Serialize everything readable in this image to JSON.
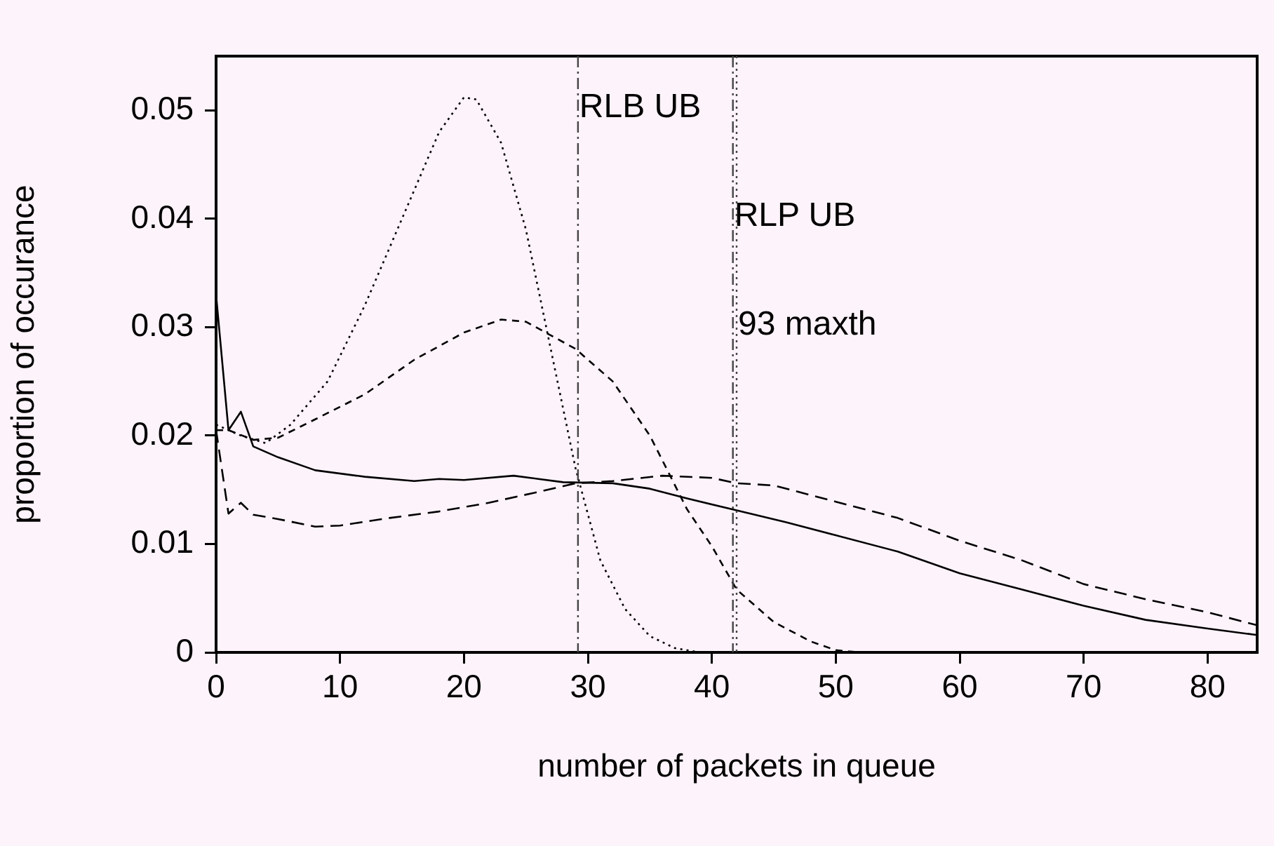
{
  "chart_data": {
    "type": "line",
    "xlabel": "number of packets in queue",
    "ylabel": "proportion of occurance",
    "xlim": [
      0,
      84
    ],
    "xticks": [
      0,
      10,
      20,
      30,
      40,
      50,
      60,
      70,
      80
    ],
    "ylim": [
      0,
      0.055
    ],
    "yticks": [
      0,
      0.01,
      0.02,
      0.03,
      0.04,
      0.05
    ],
    "grid": false,
    "legend": false,
    "marker": "none",
    "series": [
      {
        "color": "#000000",
        "line_style": "solid",
        "x": [
          0,
          1,
          2,
          3,
          5,
          8,
          12,
          16,
          18,
          20,
          24,
          26,
          28,
          32,
          35,
          38,
          42,
          46,
          50,
          55,
          60,
          65,
          70,
          75,
          80,
          84
        ],
        "values": [
          0.033,
          0.0205,
          0.0222,
          0.019,
          0.018,
          0.0168,
          0.0162,
          0.0158,
          0.016,
          0.0159,
          0.0163,
          0.016,
          0.0157,
          0.0156,
          0.0151,
          0.0142,
          0.0131,
          0.012,
          0.0108,
          0.0093,
          0.0073,
          0.0058,
          0.0043,
          0.003,
          0.0022,
          0.0016
        ]
      },
      {
        "color": "#000000",
        "line_style": "dashed",
        "x": [
          0,
          1,
          2,
          3,
          5,
          8,
          10,
          14,
          18,
          22,
          26,
          29,
          32,
          36,
          40,
          42,
          45,
          50,
          55,
          60,
          65,
          70,
          75,
          80,
          84
        ],
        "values": [
          0.0205,
          0.0128,
          0.0138,
          0.0127,
          0.0123,
          0.0116,
          0.0117,
          0.0124,
          0.013,
          0.0138,
          0.0148,
          0.0156,
          0.0158,
          0.0163,
          0.0161,
          0.0156,
          0.0154,
          0.0139,
          0.0124,
          0.0103,
          0.0085,
          0.0063,
          0.0049,
          0.0037,
          0.0025
        ]
      },
      {
        "color": "#000000",
        "line_style": "dashed",
        "x": [
          0,
          1,
          3,
          5,
          8,
          12,
          16,
          20,
          23,
          25,
          29,
          32,
          35,
          38,
          40,
          42,
          45,
          48,
          50,
          52
        ],
        "values": [
          0.0205,
          0.0205,
          0.0196,
          0.0198,
          0.0215,
          0.0238,
          0.027,
          0.0295,
          0.0307,
          0.0305,
          0.028,
          0.025,
          0.02,
          0.0132,
          0.0098,
          0.0058,
          0.0028,
          0.001,
          0.0002,
          0
        ]
      },
      {
        "color": "#000000",
        "line_style": "dotted",
        "x": [
          0,
          2,
          4,
          6,
          9,
          12,
          15,
          18,
          20,
          21,
          23,
          25,
          27,
          29,
          31,
          33,
          35,
          37,
          39,
          40
        ],
        "values": [
          0.021,
          0.02,
          0.0193,
          0.021,
          0.025,
          0.032,
          0.04,
          0.048,
          0.0512,
          0.051,
          0.047,
          0.039,
          0.028,
          0.017,
          0.0085,
          0.004,
          0.0015,
          0.0004,
          0,
          0
        ]
      }
    ],
    "ref_lines": [
      {
        "axis": "x",
        "value": 29.2,
        "label": "RLB UB",
        "color": "#444444",
        "line_style": "dashdot"
      },
      {
        "axis": "x",
        "value": 41.7,
        "label": "RLP UB",
        "color": "#444444",
        "line_style": "dashdot"
      },
      {
        "axis": "x",
        "value": 42.0,
        "label": "93 maxth",
        "color": "#444444",
        "line_style": "dotted"
      }
    ]
  }
}
